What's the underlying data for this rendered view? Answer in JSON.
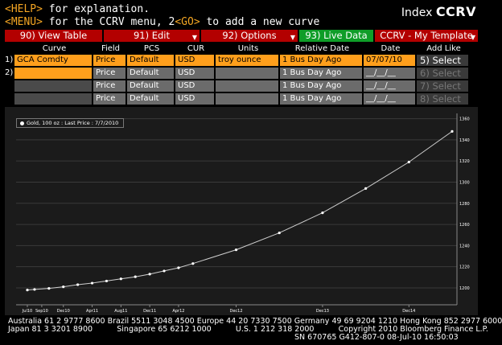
{
  "header": {
    "line1_key": "<HELP>",
    "line1_rest": " for explanation.",
    "line2_key1": "<MENU>",
    "line2_mid": " for the CCRV menu, 2",
    "line2_key2": "<GO>",
    "line2_rest": " to add a new curve",
    "index_label": "Index",
    "index_code": "CCRV"
  },
  "menu": [
    {
      "label": "90) View Table",
      "color": "#b30000",
      "caret": false
    },
    {
      "label": "91) Edit",
      "color": "#b30000",
      "caret": true
    },
    {
      "label": "92) Options",
      "color": "#b30000",
      "caret": true
    },
    {
      "label": "93) Live Data",
      "color": "#0f9d28",
      "caret": false
    },
    {
      "label": "CCRV - My Template",
      "color": "#b30000",
      "caret": true
    }
  ],
  "grid": {
    "headers": [
      "Curve",
      "Field",
      "PCS",
      "CUR",
      "Units",
      "Relative Date",
      "Date",
      "Add Like"
    ],
    "rows": [
      {
        "index": "1)",
        "curve": "GCA Comdty",
        "field": "Price",
        "pcs": "Default",
        "cur": "USD",
        "units": "troy ounce",
        "relative_date": "1 Bus Day Ago",
        "date": "07/07/10",
        "add": "5) Select"
      },
      {
        "index": "2)",
        "curve": "",
        "field": "Price",
        "pcs": "Default",
        "cur": "USD",
        "units": "",
        "relative_date": "1 Bus Day Ago",
        "date": "__/__/__",
        "add": "6) Select"
      },
      {
        "index": "",
        "curve": "",
        "field": "Price",
        "pcs": "Default",
        "cur": "USD",
        "units": "",
        "relative_date": "1 Bus Day Ago",
        "date": "__/__/__",
        "add": "7) Select"
      },
      {
        "index": "",
        "curve": "",
        "field": "Price",
        "pcs": "Default",
        "cur": "USD",
        "units": "",
        "relative_date": "1 Bus Day Ago",
        "date": "__/__/__",
        "add": "8) Select"
      }
    ]
  },
  "chart_data": {
    "type": "line",
    "legend": "Gold, 100 oz : Last Price : 7/7/2010",
    "x_tick_labels": [
      "Jul10",
      "Sep10",
      "Dec10",
      "Apr11",
      "Aug11",
      "Dec11",
      "Apr12",
      "Dec12",
      "Dec13",
      "Dec14"
    ],
    "x": [
      "Jul10",
      "Aug10",
      "Oct10",
      "Dec10",
      "Feb11",
      "Apr11",
      "Jun11",
      "Aug11",
      "Oct11",
      "Dec11",
      "Feb12",
      "Apr12",
      "Jun12",
      "Dec12",
      "Jun13",
      "Dec13",
      "Jun14",
      "Dec14",
      "Jun15"
    ],
    "values": [
      1198,
      1198.5,
      1199.5,
      1201,
      1203,
      1204.5,
      1206.5,
      1208.5,
      1210.5,
      1213,
      1216,
      1219,
      1223,
      1236,
      1252,
      1271,
      1294,
      1319,
      1348
    ],
    "y_ticks": [
      1200,
      1220,
      1240,
      1260,
      1280,
      1300,
      1320,
      1340,
      1360
    ],
    "ylim": [
      1184,
      1365
    ],
    "y_axis_side": "right",
    "grid": true,
    "line_color": "#cfcfcf",
    "background": "#1b1b1b"
  },
  "footer": {
    "line1": "Australia 61 2 9777 8600 Brazil 5511 3048 4500 Europe 44 20 7330 7500 Germany 49 69 9204 1210 Hong Kong 852 2977 6000",
    "line2": "Japan 81 3 3201 8900          Singapore 65 6212 1000          U.S. 1 212 318 2000          Copyright 2010 Bloomberg Finance L.P.",
    "line3": "SN 670765 G412-807-0 08-Jul-10 16:50:03"
  },
  "colors": {
    "amber": "#f5a623",
    "orange_field": "#ff9f1c",
    "menu_red": "#b30000",
    "menu_green": "#0f9d28"
  }
}
